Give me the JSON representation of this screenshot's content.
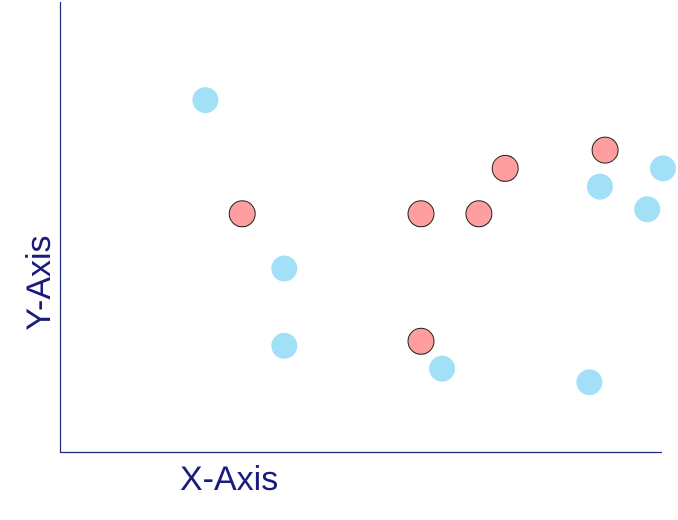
{
  "chart_data": {
    "type": "scatter",
    "xlabel": "X-Axis",
    "ylabel": "Y-Axis",
    "xlim": [
      0,
      100
    ],
    "ylim": [
      0,
      100
    ],
    "grid": false,
    "series": [
      {
        "color": "#a2e0f8",
        "stroke": "none",
        "points": [
          {
            "x": 13,
            "y": 78
          },
          {
            "x": 28,
            "y": 41
          },
          {
            "x": 28,
            "y": 24
          },
          {
            "x": 58,
            "y": 19
          },
          {
            "x": 86,
            "y": 16
          },
          {
            "x": 88,
            "y": 59
          },
          {
            "x": 97,
            "y": 54
          },
          {
            "x": 100,
            "y": 63
          }
        ]
      },
      {
        "color": "#ff9e9e",
        "stroke": "#222222",
        "points": [
          {
            "x": 20,
            "y": 53
          },
          {
            "x": 54,
            "y": 53
          },
          {
            "x": 65,
            "y": 53
          },
          {
            "x": 70,
            "y": 63
          },
          {
            "x": 89,
            "y": 67
          },
          {
            "x": 54,
            "y": 25
          }
        ]
      }
    ]
  }
}
